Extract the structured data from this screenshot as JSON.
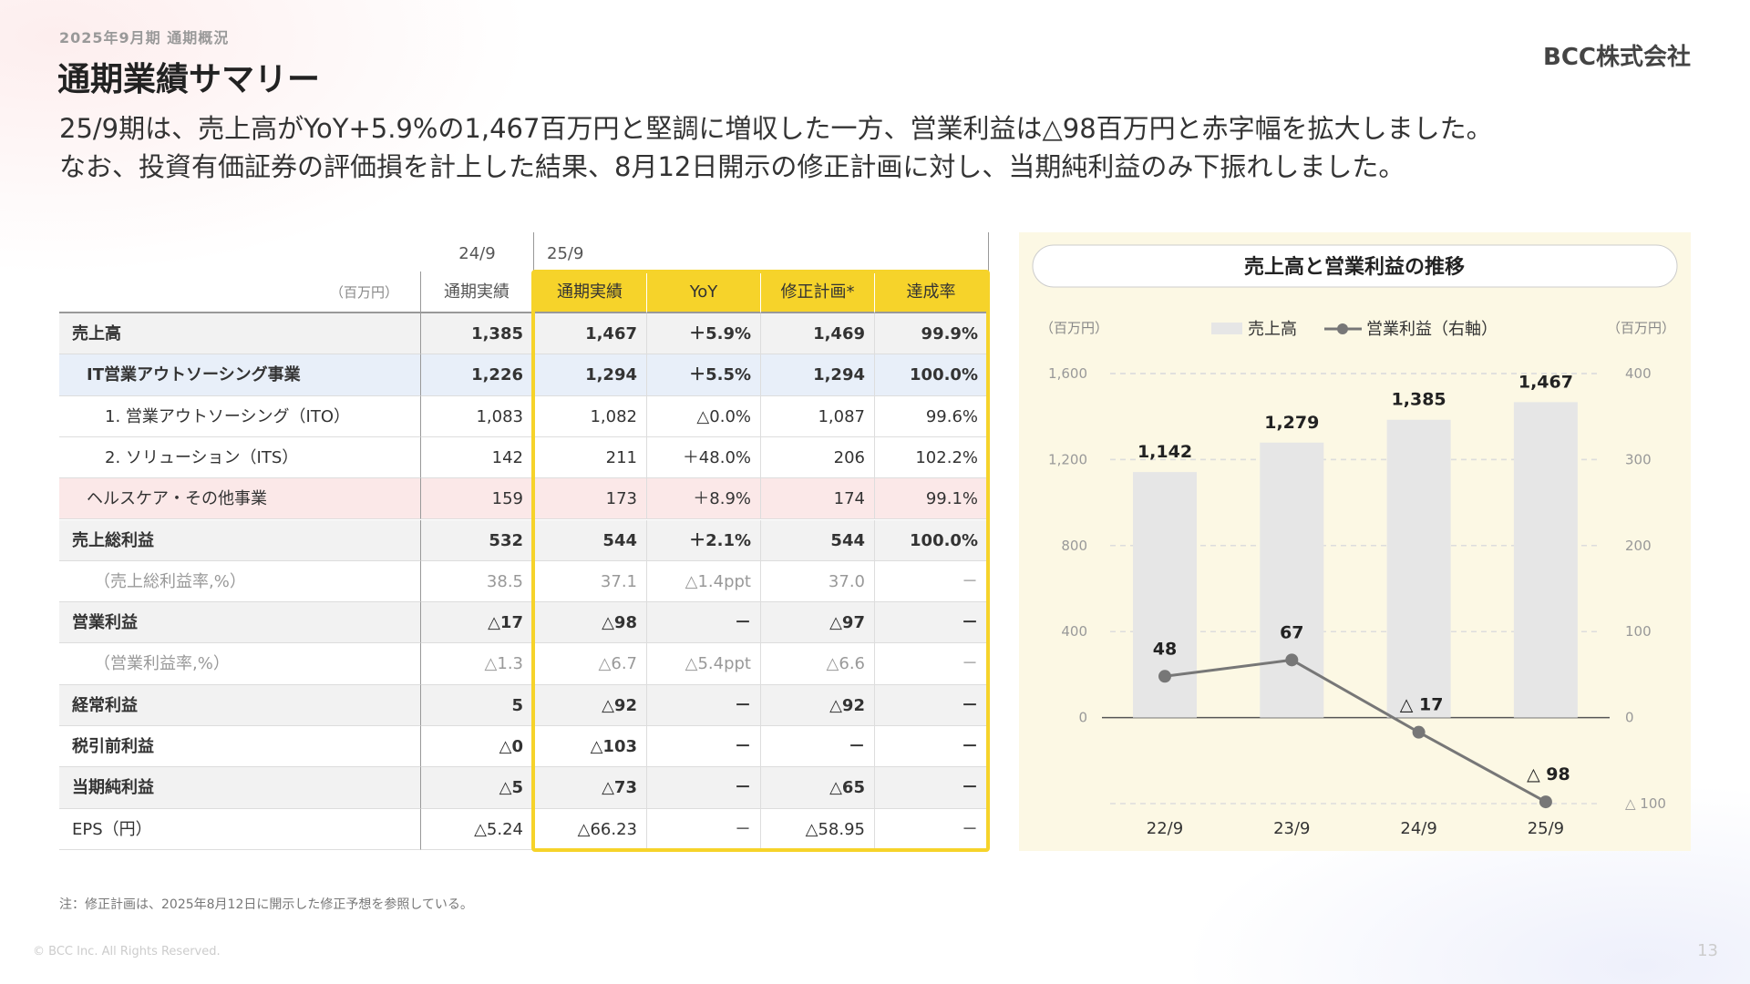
{
  "header": {
    "kicker": "2025年9月期 通期概況",
    "title": "通期業績サマリー",
    "logo": "BCC株式会社",
    "lead": [
      "25/9期は、売上高がYoY+5.9%の1,467百万円と堅調に増収した一方、営業利益は△98百万円と赤字幅を拡大しました。",
      "なお、投資有価証券の評価損を計上した結果、8月12日開示の修正計画に対し、当期純利益のみ下振れしました。"
    ]
  },
  "table": {
    "unit": "（百万円）",
    "groups": [
      "24/9",
      "25/9"
    ],
    "columns": [
      "通期実績",
      "通期実績",
      "YoY",
      "修正計画*",
      "達成率"
    ],
    "rows": [
      [
        "売上高",
        "1,385",
        "1,467",
        "＋5.9%",
        "1,469",
        "99.9%"
      ],
      [
        "IT営業アウトソーシング事業",
        "1,226",
        "1,294",
        "＋5.5%",
        "1,294",
        "100.0%"
      ],
      [
        "1. 営業アウトソーシング（ITO）",
        "1,083",
        "1,082",
        "△0.0%",
        "1,087",
        "99.6%"
      ],
      [
        "2. ソリューション（ITS）",
        "142",
        "211",
        "＋48.0%",
        "206",
        "102.2%"
      ],
      [
        "ヘルスケア・その他事業",
        "159",
        "173",
        "＋8.9%",
        "174",
        "99.1%"
      ],
      [
        "売上総利益",
        "532",
        "544",
        "＋2.1%",
        "544",
        "100.0%"
      ],
      [
        "（売上総利益率,%）",
        "38.5",
        "37.1",
        "△1.4ppt",
        "37.0",
        "－"
      ],
      [
        "営業利益",
        "△17",
        "△98",
        "－",
        "△97",
        "－"
      ],
      [
        "（営業利益率,%）",
        "△1.3",
        "△6.7",
        "△5.4ppt",
        "△6.6",
        "－"
      ],
      [
        "経常利益",
        "5",
        "△92",
        "－",
        "△92",
        "－"
      ],
      [
        "税引前利益",
        "△0",
        "△103",
        "－",
        "－",
        "－"
      ],
      [
        "当期純利益",
        "△5",
        "△73",
        "－",
        "△65",
        "－"
      ],
      [
        "EPS（円）",
        "△5.24",
        "△66.23",
        "－",
        "△58.95",
        "－"
      ]
    ]
  },
  "chart_data": {
    "type": "bar_line",
    "title": "売上高と営業利益の推移",
    "ylabel": "（百万円）",
    "y2label": "（百万円）",
    "categories": [
      "22/9",
      "23/9",
      "24/9",
      "25/9"
    ],
    "series": [
      {
        "name": "売上高",
        "type": "bar",
        "color": "#e6e6e6",
        "values": [
          1142,
          1279,
          1385,
          1467
        ],
        "value_labels": [
          "1,142",
          "1,279",
          "1,385",
          "1,467"
        ]
      },
      {
        "name": "営業利益（右軸）",
        "type": "line",
        "axis": "y2",
        "color": "#777777",
        "values": [
          48,
          67,
          -17,
          -98
        ],
        "value_labels": [
          "48",
          "67",
          "△ 17",
          "△ 98"
        ]
      }
    ],
    "ylim": [
      -400,
      1600
    ],
    "yticks": [
      0,
      400,
      800,
      {
        "value": 1200,
        "label": "1,200"
      },
      {
        "value": 1600,
        "label": "1,600"
      }
    ],
    "y2lim": [
      -100,
      400
    ],
    "y2ticks": [
      {
        "value": -100,
        "label": "△ 100"
      },
      0,
      100,
      200,
      300,
      400
    ],
    "grid": true
  },
  "note": "注：修正計画は、2025年8月12日に開示した修正予想を参照している。",
  "copyright": "© BCC Inc. All Rights Reserved.",
  "page": "13"
}
